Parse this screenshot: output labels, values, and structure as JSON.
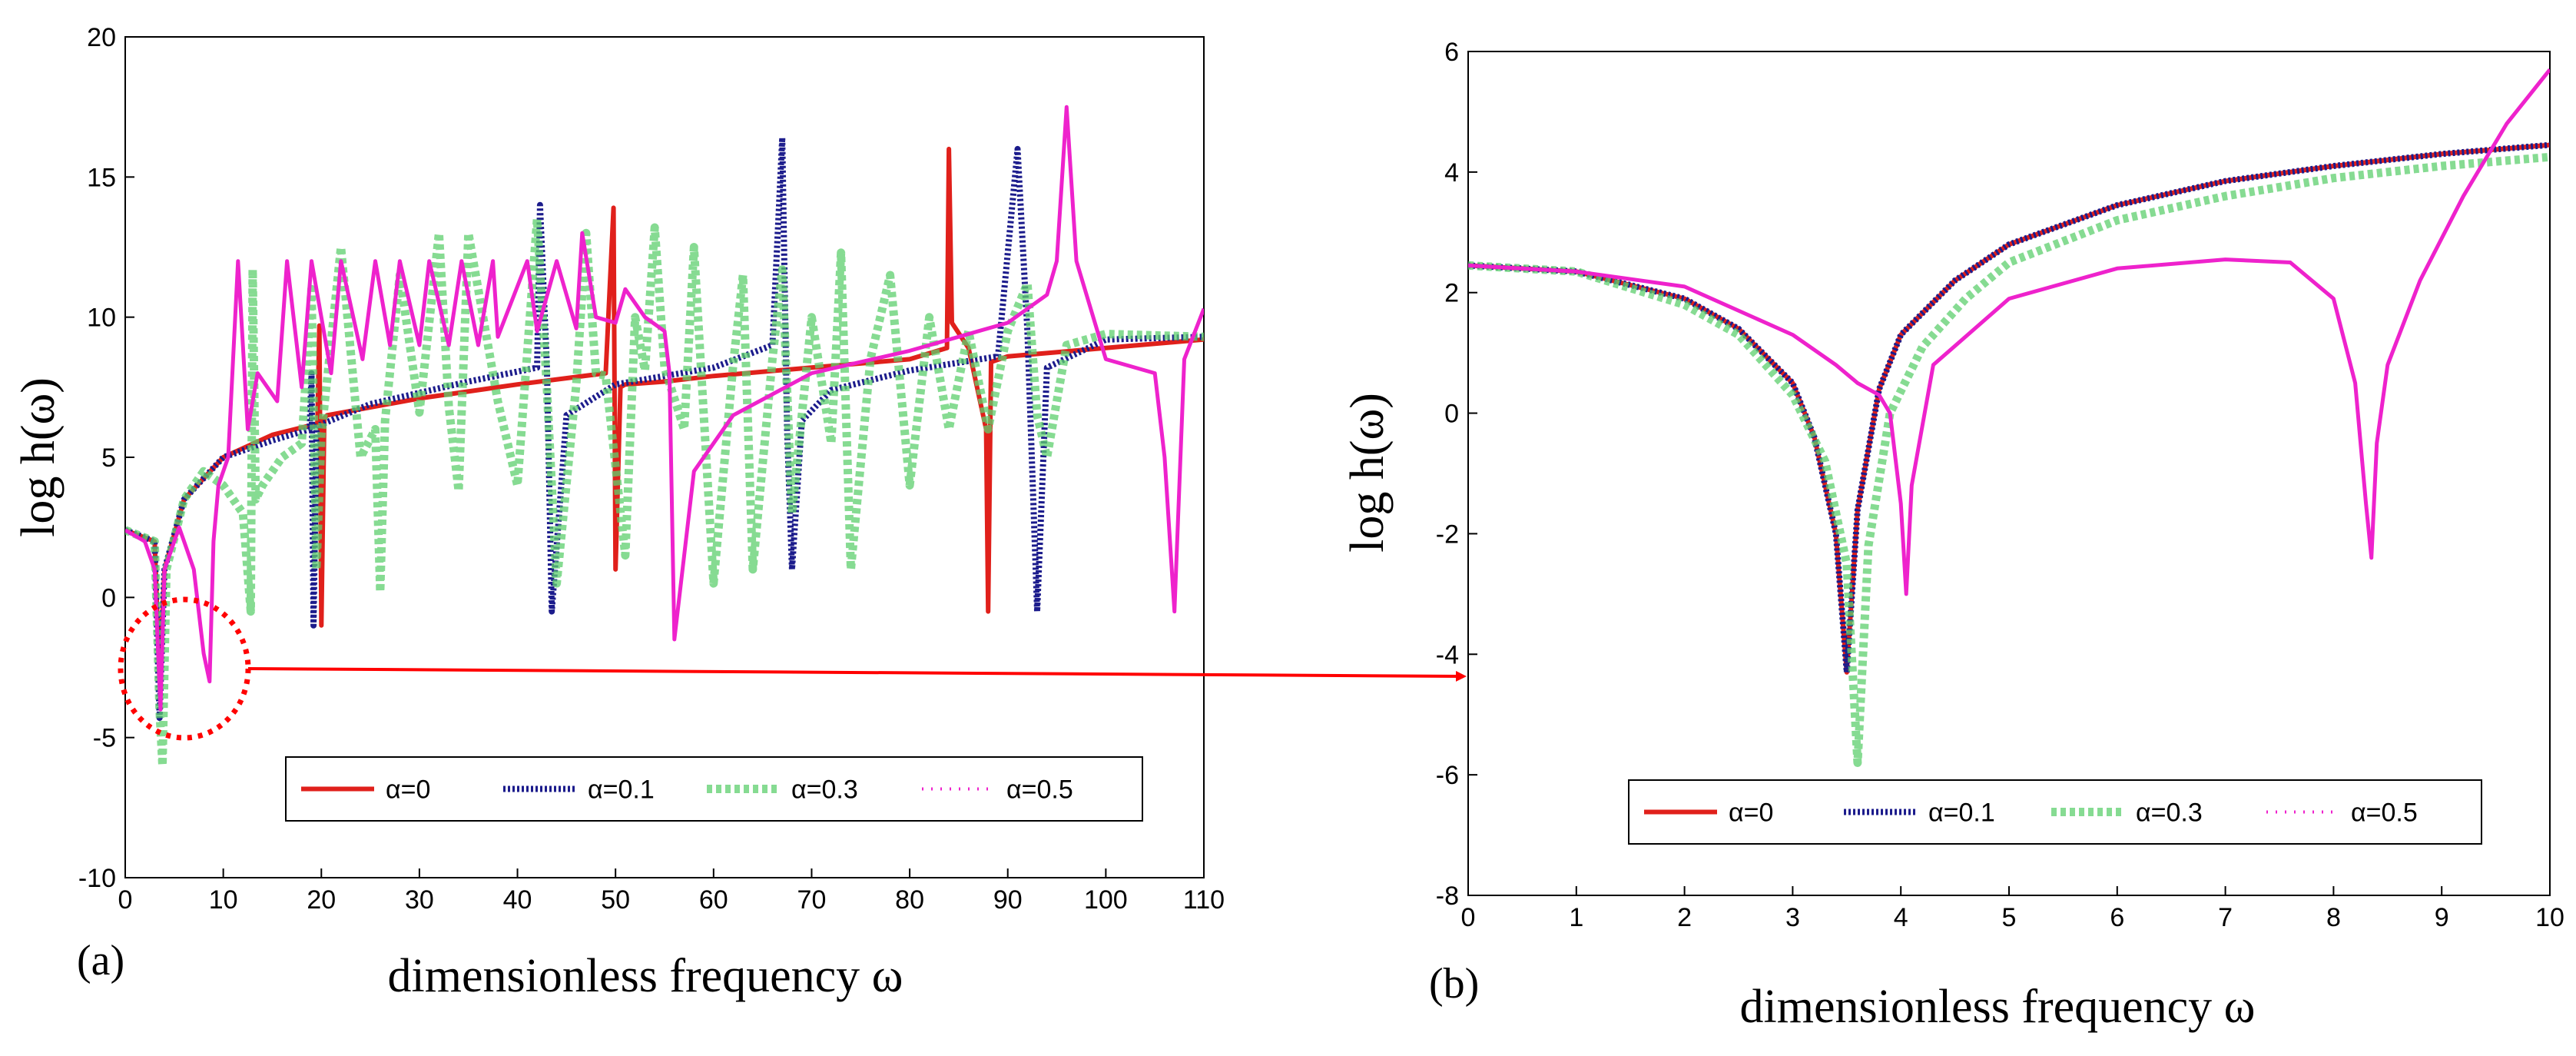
{
  "colors": {
    "a0": "#e0201b",
    "a01": "#1c1c8c",
    "a03": "#5ecf6e",
    "a05": "#ee22cc",
    "annotation": "#ff0000"
  },
  "chart_data": [
    {
      "type": "line",
      "panel_label": "(a)",
      "xlabel": "dimensionless frequency ω",
      "ylabel": "log h(ω)",
      "xlim": [
        0,
        110
      ],
      "ylim": [
        -10,
        20
      ],
      "xticks": [
        "0",
        "10",
        "20",
        "30",
        "40",
        "50",
        "60",
        "70",
        "80",
        "90",
        "100",
        "110"
      ],
      "yticks": [
        "-10",
        "-5",
        "0",
        "5",
        "10",
        "15",
        "20"
      ],
      "legend": [
        "α=0",
        "α=0.1",
        "α=0.3",
        "α=0.5"
      ],
      "series": [
        {
          "name": "α=0",
          "x": [
            0,
            3,
            3.5,
            4,
            6,
            10,
            15,
            19.6,
            19.8,
            20,
            20.3,
            20.6,
            30,
            40,
            49,
            49.8,
            50,
            50.5,
            51,
            55,
            60,
            70,
            80,
            83.8,
            84,
            84.3,
            86,
            87.8,
            88,
            88.3,
            90,
            100,
            110
          ],
          "y": [
            2.4,
            2,
            -3,
            1,
            3.5,
            5,
            5.8,
            6.2,
            9.7,
            -1,
            6.4,
            6.5,
            7.1,
            7.6,
            8,
            13.9,
            1,
            7.5,
            7.6,
            7.7,
            7.9,
            8.2,
            8.5,
            8.9,
            16,
            9.8,
            8.9,
            6,
            -0.5,
            8.4,
            8.6,
            8.9,
            9.2
          ]
        },
        {
          "name": "α=0.1",
          "x": [
            0,
            3,
            3.5,
            4,
            6,
            10,
            15,
            18.8,
            19,
            19.2,
            19.5,
            25,
            35,
            42,
            42.3,
            43,
            43.5,
            45,
            50,
            60,
            66,
            67,
            67.5,
            68,
            69,
            72,
            80,
            89,
            91,
            92,
            93,
            94,
            100,
            110
          ],
          "y": [
            2.4,
            2,
            -4.3,
            1,
            3.5,
            5,
            5.6,
            6,
            8,
            -1,
            6.1,
            6.9,
            7.7,
            8.2,
            14,
            8.3,
            -0.5,
            6.5,
            7.6,
            8.2,
            9,
            16.4,
            6,
            1,
            6.3,
            7.4,
            8.1,
            8.6,
            16,
            9.5,
            -0.5,
            8.2,
            9.2,
            9.3
          ]
        },
        {
          "name": "α=0.3",
          "x": [
            0,
            3,
            3.5,
            3.8,
            4.2,
            6,
            8,
            10,
            12,
            12.8,
            13,
            13.3,
            14,
            16,
            18,
            19,
            19.5,
            20,
            22,
            24,
            25.5,
            26,
            26.5,
            28,
            30,
            32,
            33,
            34,
            35,
            38,
            40,
            42,
            43,
            44,
            46,
            47,
            48,
            49,
            51,
            52,
            53,
            54,
            55,
            57,
            58,
            60,
            62,
            63,
            64,
            66,
            67,
            68,
            70,
            72,
            73,
            74,
            76,
            78,
            80,
            82,
            84,
            86,
            88,
            90,
            92,
            93,
            94,
            96,
            100,
            110
          ],
          "y": [
            2.4,
            2,
            -4,
            -6,
            1,
            3.5,
            4.5,
            4,
            3,
            -0.5,
            11.7,
            3.5,
            4,
            5,
            5.5,
            11,
            1,
            5.8,
            12.5,
            5,
            6,
            0.2,
            6.3,
            11.5,
            6.6,
            13,
            6.8,
            3.8,
            13,
            7,
            4,
            13.5,
            7.5,
            0.5,
            7.6,
            13,
            8,
            7.9,
            1.5,
            10,
            8.1,
            13.2,
            8.2,
            6,
            12.5,
            0.5,
            8.3,
            11.5,
            1,
            8.5,
            11.7,
            3,
            10,
            5.5,
            12.3,
            1,
            8.5,
            11.5,
            4,
            10,
            6,
            9.5,
            6,
            9.5,
            11.2,
            6.5,
            5,
            9,
            9.4,
            9.3
          ]
        },
        {
          "name": "α=0.5",
          "x": [
            0,
            2,
            3,
            3.6,
            4,
            5.5,
            6,
            7,
            8,
            8.6,
            9,
            9.5,
            10.5,
            11.5,
            12.5,
            13.5,
            15.5,
            16.5,
            18,
            19,
            21,
            22,
            24.2,
            25.5,
            27,
            28,
            30,
            31,
            33,
            34.3,
            36,
            37.5,
            38,
            41,
            42,
            44,
            46,
            46.6,
            48,
            50,
            51,
            53,
            55,
            55.5,
            56,
            58,
            62,
            70,
            80,
            90,
            94,
            95,
            96,
            97,
            100,
            105,
            106,
            107,
            108,
            110
          ],
          "y": [
            2.4,
            2,
            1,
            -4,
            1,
            2.5,
            2,
            1,
            -2,
            -3,
            2,
            4,
            5,
            12,
            6,
            8,
            7,
            12,
            7.5,
            12,
            8,
            12,
            8.5,
            12,
            9,
            12,
            9,
            12,
            9,
            12,
            9,
            12,
            9.3,
            12,
            9.5,
            12,
            9.6,
            13,
            10,
            9.8,
            11,
            10,
            9.5,
            8,
            -1.5,
            4.5,
            6.5,
            8,
            8.8,
            9.8,
            10.8,
            12,
            17.5,
            12,
            8.5,
            8,
            5,
            -0.5,
            8.5,
            10.3
          ]
        }
      ]
    },
    {
      "type": "line",
      "panel_label": "(b)",
      "xlabel": "dimensionless frequency ω",
      "ylabel": "log h(ω)",
      "xlim": [
        0,
        10
      ],
      "ylim": [
        -8,
        6
      ],
      "xticks": [
        "0",
        "1",
        "2",
        "3",
        "4",
        "5",
        "6",
        "7",
        "8",
        "9",
        "10"
      ],
      "yticks": [
        "-8",
        "-6",
        "-4",
        "-2",
        "0",
        "2",
        "4",
        "6"
      ],
      "legend": [
        "α=0",
        "α=0.1",
        "α=0.3",
        "α=0.5"
      ],
      "series": [
        {
          "name": "α=0",
          "x": [
            0,
            1,
            2,
            2.5,
            3,
            3.2,
            3.4,
            3.5,
            3.6,
            3.8,
            4,
            4.5,
            5,
            6,
            7,
            8,
            9,
            10
          ],
          "y": [
            2.45,
            2.35,
            1.9,
            1.4,
            0.5,
            -0.4,
            -2,
            -4.3,
            -1.6,
            0.4,
            1.3,
            2.2,
            2.8,
            3.45,
            3.85,
            4.1,
            4.3,
            4.45
          ]
        },
        {
          "name": "α=0.1",
          "x": [
            0,
            1,
            2,
            2.5,
            3,
            3.2,
            3.4,
            3.5,
            3.6,
            3.8,
            4,
            4.5,
            5,
            6,
            7,
            8,
            9,
            10
          ],
          "y": [
            2.45,
            2.35,
            1.9,
            1.4,
            0.5,
            -0.4,
            -2,
            -4.3,
            -1.6,
            0.4,
            1.3,
            2.2,
            2.8,
            3.45,
            3.85,
            4.1,
            4.3,
            4.45
          ]
        },
        {
          "name": "α=0.3",
          "x": [
            0,
            1,
            2,
            2.5,
            3,
            3.3,
            3.5,
            3.6,
            3.7,
            3.9,
            4.2,
            4.6,
            5,
            6,
            7,
            8,
            9,
            10
          ],
          "y": [
            2.45,
            2.35,
            1.8,
            1.3,
            0.3,
            -0.8,
            -2.5,
            -5.8,
            -2.2,
            0,
            1.1,
            1.9,
            2.5,
            3.2,
            3.6,
            3.9,
            4.1,
            4.25
          ]
        },
        {
          "name": "α=0.5",
          "x": [
            0,
            1,
            2,
            3,
            3.4,
            3.6,
            3.8,
            3.9,
            4,
            4.05,
            4.1,
            4.3,
            5,
            6,
            7,
            7.6,
            8,
            8.2,
            8.3,
            8.35,
            8.4,
            8.5,
            8.8,
            9.2,
            9.6,
            10
          ],
          "y": [
            2.45,
            2.35,
            2.1,
            1.3,
            0.8,
            0.5,
            0.3,
            0,
            -1.5,
            -3,
            -1.2,
            0.8,
            1.9,
            2.4,
            2.55,
            2.5,
            1.9,
            0.5,
            -1.5,
            -2.4,
            -0.5,
            0.8,
            2.2,
            3.6,
            4.8,
            5.7
          ]
        }
      ]
    }
  ]
}
